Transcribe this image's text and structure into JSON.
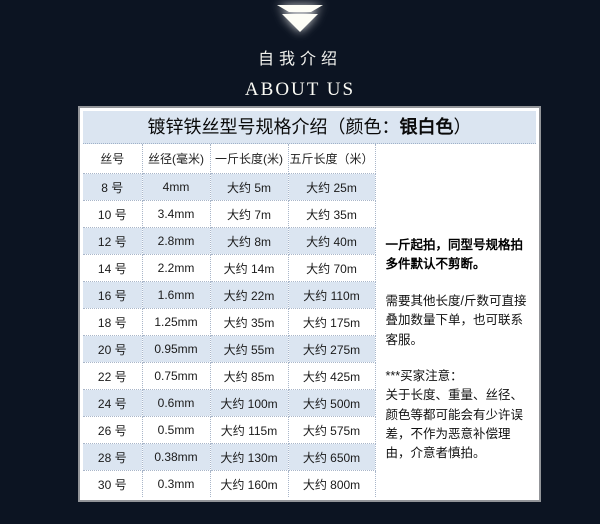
{
  "colors": {
    "background": "#0c1422",
    "panel_blue": "#dbe5f1",
    "panel_border": "#939599",
    "text_dark": "#1a1a1a",
    "arrow_white": "#fdfdf6"
  },
  "about": {
    "arrow_icon": "down-arrow-icon",
    "title_cn": "自我介绍",
    "title_en": "ABOUT US"
  },
  "panel": {
    "title_prefix": "镀锌铁丝型号规格介绍（颜色：",
    "title_bold": "银白色",
    "title_suffix": "）",
    "table": {
      "columns": [
        "丝号",
        "丝径(毫米)",
        "一斤长度(米)",
        "五斤长度（米）"
      ],
      "rows": [
        [
          "8 号",
          "4mm",
          "大约 5m",
          "大约 25m"
        ],
        [
          "10 号",
          "3.4mm",
          "大约 7m",
          "大约 35m"
        ],
        [
          "12 号",
          "2.8mm",
          "大约 8m",
          "大约 40m"
        ],
        [
          "14 号",
          "2.2mm",
          "大约 14m",
          "大约 70m"
        ],
        [
          "16 号",
          "1.6mm",
          "大约 22m",
          "大约 110m"
        ],
        [
          "18 号",
          "1.25mm",
          "大约 35m",
          "大约 175m"
        ],
        [
          "20 号",
          "0.95mm",
          "大约 55m",
          "大约 275m"
        ],
        [
          "22 号",
          "0.75mm",
          "大约 85m",
          "大约 425m"
        ],
        [
          "24 号",
          "0.6mm",
          "大约 100m",
          "大约 500m"
        ],
        [
          "26 号",
          "0.5mm",
          "大约 115m",
          "大约 575m"
        ],
        [
          "28 号",
          "0.38mm",
          "大约 130m",
          "大约 650m"
        ],
        [
          "30 号",
          "0.3mm",
          "大约 160m",
          "大约 800m"
        ]
      ]
    },
    "notes": [
      {
        "text": "一斤起拍，同型号规格拍多件默认不剪断。",
        "bold": true
      },
      {
        "text": "需要其他长度/斤数可直接叠加数量下单，也可联系客服。",
        "bold": false
      },
      {
        "text": "***买家注意：\n关于长度、重量、丝径、颜色等都可能会有少许误差，不作为恶意补偿理由，介意者慎拍。",
        "bold": false
      }
    ]
  }
}
